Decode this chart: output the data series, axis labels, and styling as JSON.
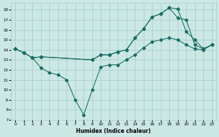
{
  "xlabel": "Humidex (Indice chaleur)",
  "bg_color": "#cce8e4",
  "grid_color": "#a8ceca",
  "line_color": "#1a6e65",
  "xlim": [
    -0.5,
    23.5
  ],
  "ylim": [
    7,
    18.7
  ],
  "xticks": [
    0,
    1,
    2,
    3,
    4,
    5,
    6,
    7,
    8,
    9,
    10,
    11,
    12,
    13,
    14,
    15,
    16,
    17,
    18,
    19,
    20,
    21,
    22,
    23
  ],
  "yticks": [
    7,
    8,
    9,
    10,
    11,
    12,
    13,
    14,
    15,
    16,
    17,
    18
  ],
  "line1_x": [
    0,
    1,
    2,
    3,
    9,
    10,
    11,
    12,
    13,
    14,
    15,
    16,
    17,
    18,
    19,
    20,
    21,
    22,
    23
  ],
  "line1_y": [
    14.1,
    13.7,
    13.2,
    13.3,
    13.0,
    13.5,
    13.5,
    13.8,
    14.0,
    15.2,
    16.1,
    17.3,
    17.6,
    18.2,
    18.1,
    15.8,
    15.0,
    14.1,
    14.5
  ],
  "line2_x": [
    0,
    1,
    2,
    3,
    4,
    5,
    6,
    7,
    8,
    9,
    10,
    11,
    12,
    13,
    14,
    15,
    16,
    17,
    18,
    19,
    20,
    21,
    22,
    23
  ],
  "line2_y": [
    14.1,
    13.7,
    13.2,
    12.2,
    11.7,
    11.5,
    11.0,
    9.0,
    7.5,
    10.0,
    12.3,
    12.5,
    12.5,
    13.0,
    13.5,
    14.2,
    14.8,
    15.0,
    15.2,
    15.0,
    14.5,
    14.1,
    14.0,
    14.5
  ],
  "line3_x": [
    0,
    1,
    2,
    3,
    9,
    10,
    11,
    12,
    13,
    14,
    15,
    16,
    17,
    18,
    19,
    20,
    21,
    22,
    23
  ],
  "line3_y": [
    14.1,
    13.7,
    13.2,
    13.3,
    13.0,
    13.5,
    13.5,
    13.8,
    14.0,
    15.2,
    16.1,
    17.3,
    17.6,
    18.2,
    17.2,
    17.0,
    14.5,
    14.1,
    14.5
  ]
}
